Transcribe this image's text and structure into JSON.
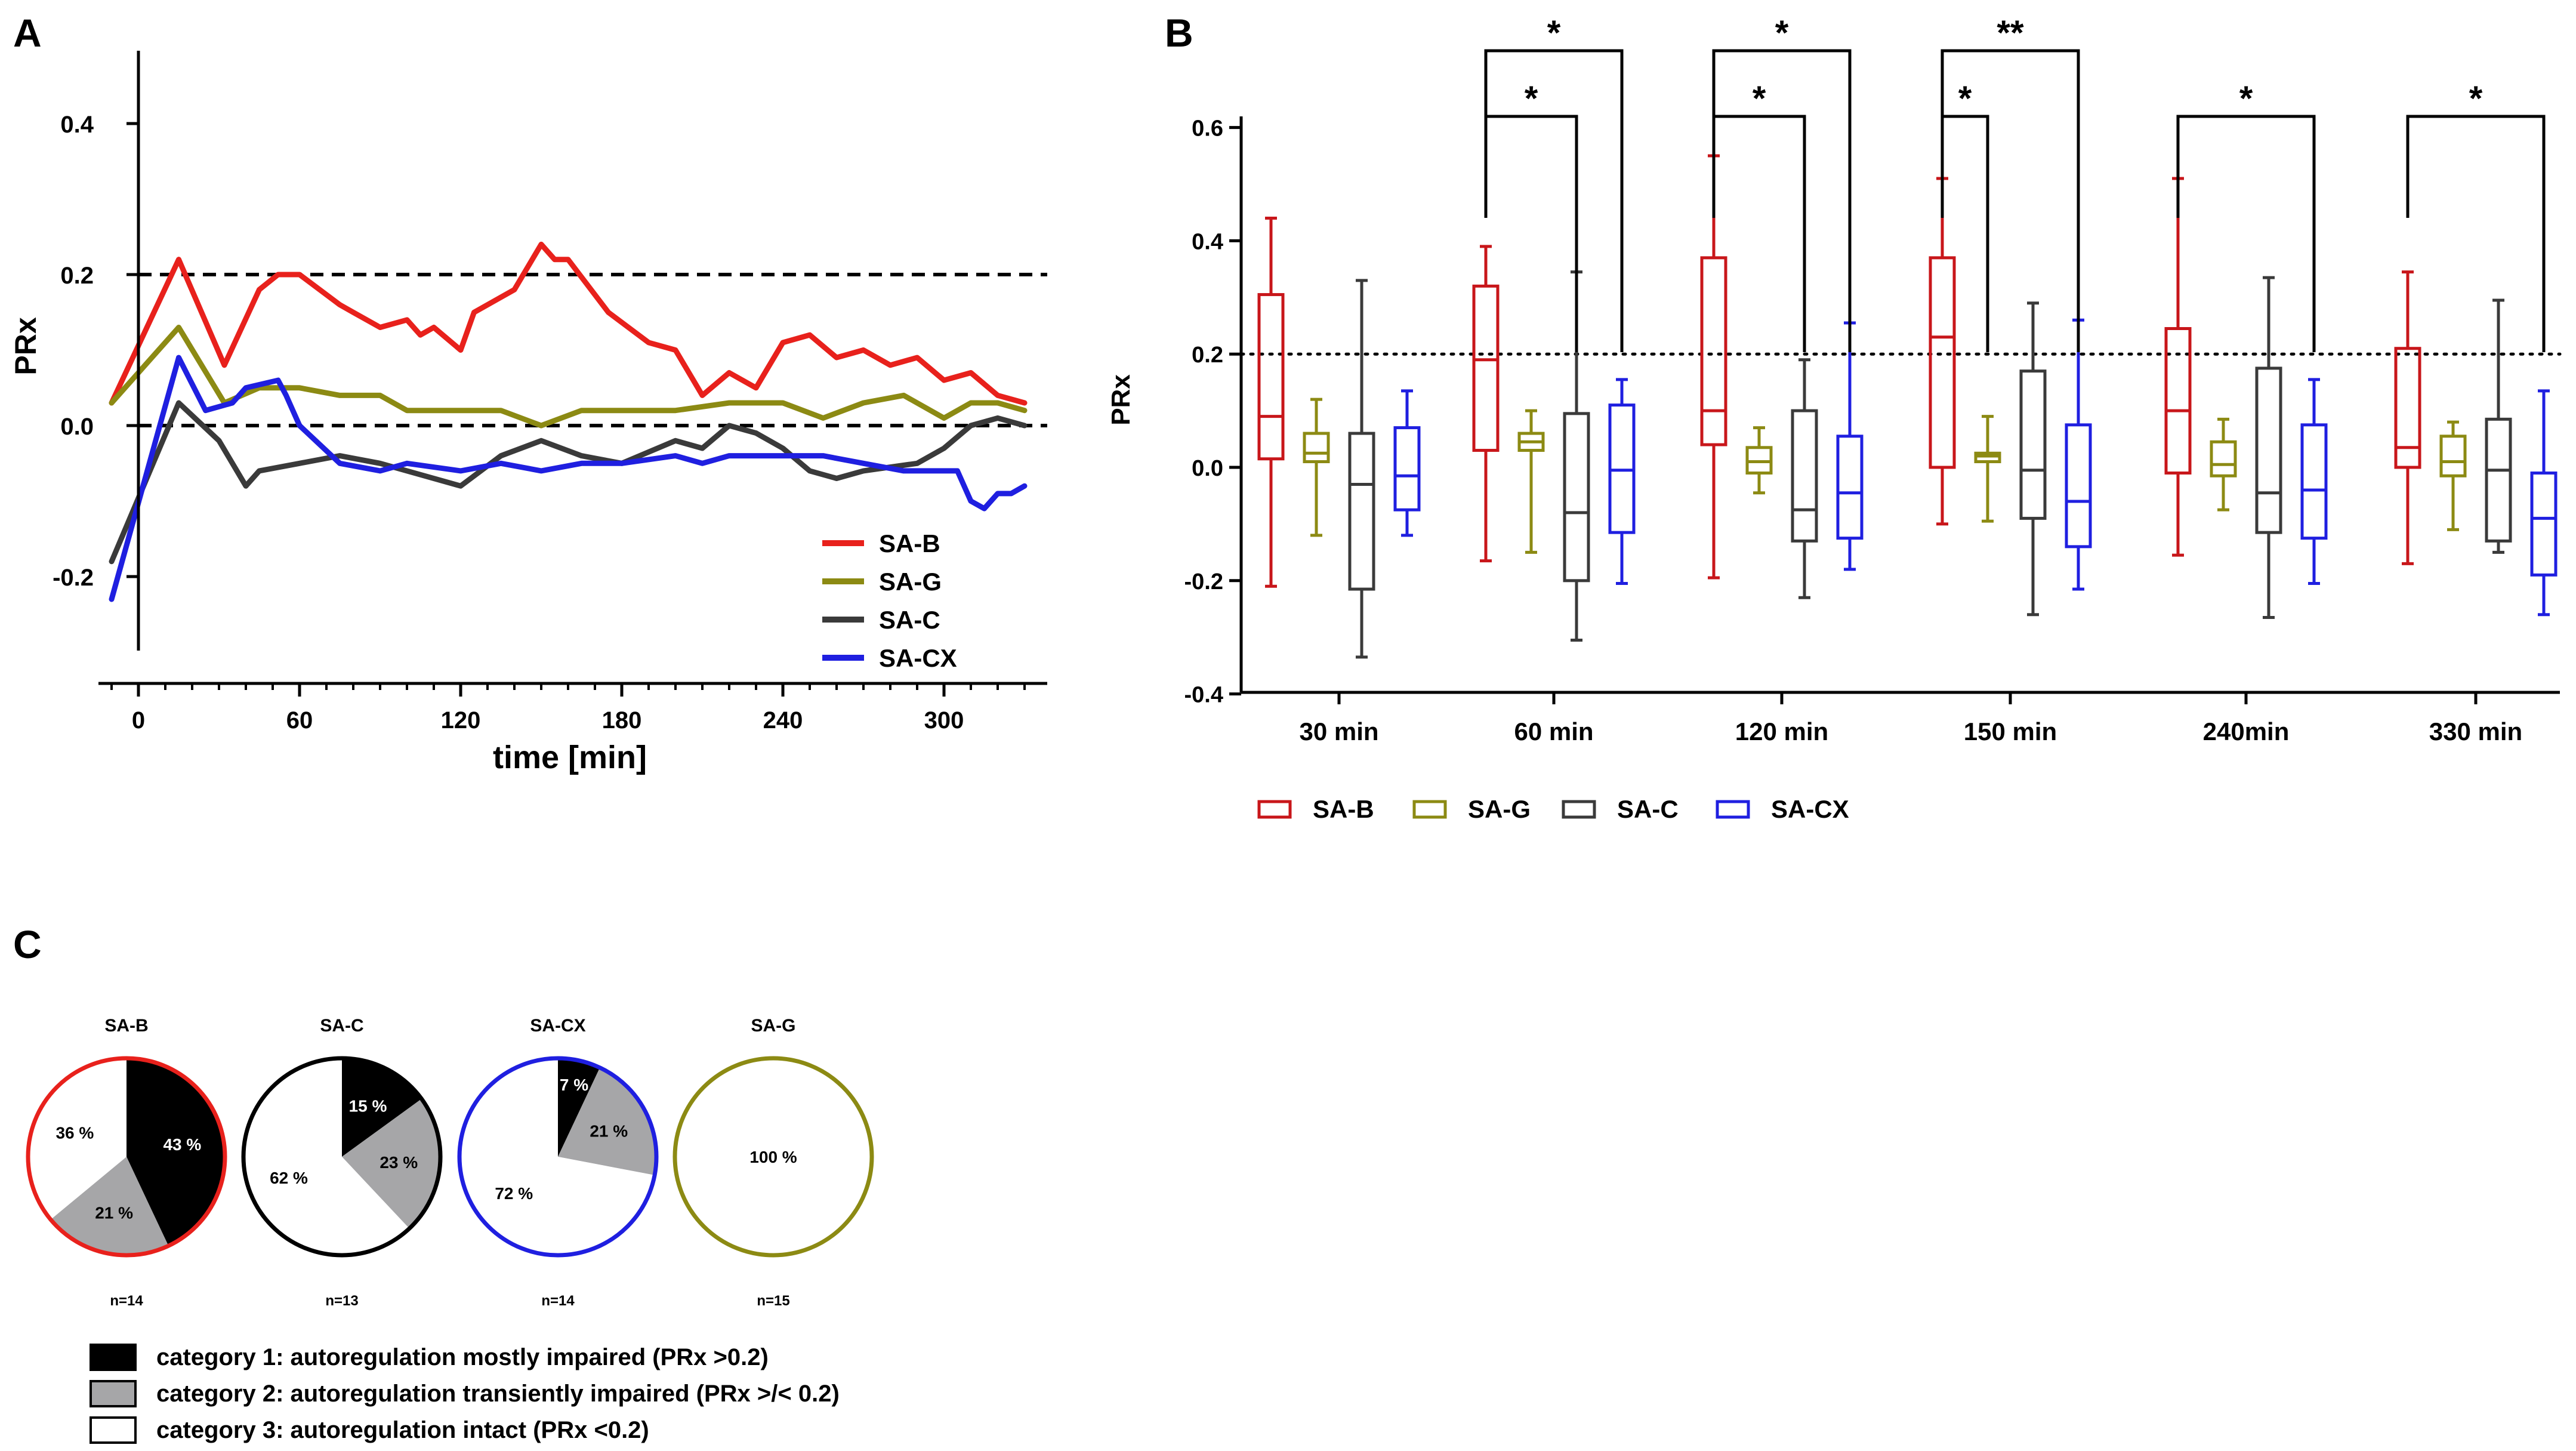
{
  "colors": {
    "SA-B": "#e8211c",
    "SA-G": "#8c8a13",
    "SA-C": "#3a3a3a",
    "SA-CX": "#1f1fe0",
    "SA-B_box": "#c8161a",
    "gray": "#a6a6a8",
    "black": "#000000"
  },
  "chart_data": [
    {
      "panel": "A",
      "type": "line",
      "xlabel": "time [min]",
      "ylabel": "PRx",
      "xlim": [
        -10,
        335
      ],
      "ylim": [
        -0.3,
        0.5
      ],
      "x_ticks": [
        0,
        60,
        120,
        180,
        240,
        300
      ],
      "y_ticks": [
        -0.2,
        0.0,
        0.2,
        0.4
      ],
      "y_tick_labels": [
        "-0.2",
        "0.0",
        "0.2",
        "0.4"
      ],
      "reference_lines": [
        0.2,
        0.0
      ],
      "legend": [
        "SA-B",
        "SA-G",
        "SA-C",
        "SA-CX"
      ],
      "series": [
        {
          "name": "SA-B",
          "x": [
            -10,
            15,
            32,
            45,
            52,
            60,
            75,
            80,
            90,
            100,
            105,
            110,
            120,
            125,
            140,
            150,
            155,
            160,
            175,
            190,
            200,
            210,
            220,
            230,
            240,
            250,
            260,
            270,
            280,
            290,
            300,
            310,
            320,
            330
          ],
          "values": [
            0.03,
            0.22,
            0.08,
            0.18,
            0.2,
            0.2,
            0.16,
            0.15,
            0.13,
            0.14,
            0.12,
            0.13,
            0.1,
            0.15,
            0.18,
            0.24,
            0.22,
            0.22,
            0.15,
            0.11,
            0.1,
            0.04,
            0.07,
            0.05,
            0.11,
            0.12,
            0.09,
            0.1,
            0.08,
            0.09,
            0.06,
            0.07,
            0.04,
            0.03
          ]
        },
        {
          "name": "SA-G",
          "x": [
            -10,
            15,
            32,
            45,
            60,
            75,
            90,
            100,
            120,
            135,
            150,
            165,
            180,
            200,
            220,
            240,
            255,
            270,
            285,
            300,
            310,
            320,
            330
          ],
          "values": [
            0.03,
            0.13,
            0.03,
            0.05,
            0.05,
            0.04,
            0.04,
            0.02,
            0.02,
            0.02,
            0.0,
            0.02,
            0.02,
            0.02,
            0.03,
            0.03,
            0.01,
            0.03,
            0.04,
            0.01,
            0.03,
            0.03,
            0.02
          ]
        },
        {
          "name": "SA-C",
          "x": [
            -10,
            15,
            30,
            40,
            45,
            60,
            75,
            90,
            100,
            120,
            135,
            150,
            165,
            180,
            200,
            210,
            220,
            230,
            240,
            250,
            260,
            270,
            290,
            300,
            310,
            320,
            330
          ],
          "values": [
            -0.18,
            0.03,
            -0.02,
            -0.08,
            -0.06,
            -0.05,
            -0.04,
            -0.05,
            -0.06,
            -0.08,
            -0.04,
            -0.02,
            -0.04,
            -0.05,
            -0.02,
            -0.03,
            0.0,
            -0.01,
            -0.03,
            -0.06,
            -0.07,
            -0.06,
            -0.05,
            -0.03,
            0.0,
            0.01,
            0.0
          ]
        },
        {
          "name": "SA-CX",
          "x": [
            -10,
            15,
            25,
            35,
            40,
            52,
            55,
            60,
            75,
            90,
            100,
            120,
            135,
            150,
            165,
            180,
            200,
            210,
            220,
            240,
            255,
            270,
            285,
            300,
            305,
            310,
            315,
            320,
            325,
            330
          ],
          "values": [
            -0.23,
            0.09,
            0.02,
            0.03,
            0.05,
            0.06,
            0.04,
            0.0,
            -0.05,
            -0.06,
            -0.05,
            -0.06,
            -0.05,
            -0.06,
            -0.05,
            -0.05,
            -0.04,
            -0.05,
            -0.04,
            -0.04,
            -0.04,
            -0.05,
            -0.06,
            -0.06,
            -0.06,
            -0.1,
            -0.11,
            -0.09,
            -0.09,
            -0.08
          ]
        }
      ]
    },
    {
      "panel": "B",
      "type": "box",
      "ylabel": "PRx",
      "ylim": [
        -0.4,
        0.62
      ],
      "y_ticks": [
        -0.4,
        -0.2,
        0.0,
        0.2,
        0.4,
        0.6
      ],
      "y_tick_labels": [
        "-0.4",
        "-0.2",
        "0.0",
        "0.2",
        "0.4",
        "0.6"
      ],
      "reference_line": 0.2,
      "groups": [
        "30 min",
        "60 min",
        "120 min",
        "150 min",
        "240min",
        "330 min"
      ],
      "legend": [
        "SA-B",
        "SA-G",
        "SA-C",
        "SA-CX"
      ],
      "series": [
        {
          "name": "SA-B",
          "boxes": [
            {
              "min": -0.21,
              "q1": 0.015,
              "median": 0.09,
              "q3": 0.305,
              "max": 0.44
            },
            {
              "min": -0.165,
              "q1": 0.03,
              "median": 0.19,
              "q3": 0.32,
              "max": 0.39
            },
            {
              "min": -0.195,
              "q1": 0.04,
              "median": 0.1,
              "q3": 0.37,
              "max": 0.55
            },
            {
              "min": -0.1,
              "q1": 0.0,
              "median": 0.23,
              "q3": 0.37,
              "max": 0.51
            },
            {
              "min": -0.155,
              "q1": -0.01,
              "median": 0.1,
              "q3": 0.245,
              "max": 0.51
            },
            {
              "min": -0.17,
              "q1": 0.0,
              "median": 0.035,
              "q3": 0.21,
              "max": 0.345
            }
          ]
        },
        {
          "name": "SA-G",
          "boxes": [
            {
              "min": -0.12,
              "q1": 0.01,
              "median": 0.025,
              "q3": 0.06,
              "max": 0.12
            },
            {
              "min": -0.15,
              "q1": 0.03,
              "median": 0.045,
              "q3": 0.06,
              "max": 0.1
            },
            {
              "min": -0.045,
              "q1": -0.01,
              "median": 0.01,
              "q3": 0.035,
              "max": 0.07
            },
            {
              "min": -0.095,
              "q1": 0.01,
              "median": 0.02,
              "q3": 0.025,
              "max": 0.09
            },
            {
              "min": -0.075,
              "q1": -0.015,
              "median": 0.005,
              "q3": 0.045,
              "max": 0.085
            },
            {
              "min": -0.11,
              "q1": -0.015,
              "median": 0.01,
              "q3": 0.055,
              "max": 0.08
            }
          ]
        },
        {
          "name": "SA-C",
          "boxes": [
            {
              "min": -0.335,
              "q1": -0.215,
              "median": -0.03,
              "q3": 0.06,
              "max": 0.33
            },
            {
              "min": -0.305,
              "q1": -0.2,
              "median": -0.08,
              "q3": 0.095,
              "max": 0.345
            },
            {
              "min": -0.23,
              "q1": -0.13,
              "median": -0.075,
              "q3": 0.1,
              "max": 0.19
            },
            {
              "min": -0.26,
              "q1": -0.09,
              "median": -0.005,
              "q3": 0.17,
              "max": 0.29
            },
            {
              "min": -0.265,
              "q1": -0.115,
              "median": -0.045,
              "q3": 0.175,
              "max": 0.335
            },
            {
              "min": -0.15,
              "q1": -0.13,
              "median": -0.005,
              "q3": 0.085,
              "max": 0.295
            }
          ]
        },
        {
          "name": "SA-CX",
          "boxes": [
            {
              "min": -0.12,
              "q1": -0.075,
              "median": -0.015,
              "q3": 0.07,
              "max": 0.135
            },
            {
              "min": -0.205,
              "q1": -0.115,
              "median": -0.005,
              "q3": 0.11,
              "max": 0.155
            },
            {
              "min": -0.18,
              "q1": -0.125,
              "median": -0.045,
              "q3": 0.055,
              "max": 0.255
            },
            {
              "min": -0.215,
              "q1": -0.14,
              "median": -0.06,
              "q3": 0.075,
              "max": 0.26
            },
            {
              "min": -0.205,
              "q1": -0.125,
              "median": -0.04,
              "q3": 0.075,
              "max": 0.155
            },
            {
              "min": -0.26,
              "q1": -0.19,
              "median": -0.09,
              "q3": -0.01,
              "max": 0.135
            }
          ]
        }
      ],
      "significance": [
        {
          "group": "60 min",
          "from": "SA-B",
          "to": "SA-C",
          "label": "*"
        },
        {
          "group": "60 min",
          "from": "SA-B",
          "to": "SA-CX",
          "label": "*"
        },
        {
          "group": "120 min",
          "from": "SA-B",
          "to": "SA-C",
          "label": "*"
        },
        {
          "group": "120 min",
          "from": "SA-B",
          "to": "SA-CX",
          "label": "*"
        },
        {
          "group": "150 min",
          "from": "SA-B",
          "to": "SA-G",
          "label": "*"
        },
        {
          "group": "150 min",
          "from": "SA-B",
          "to": "SA-CX",
          "label": "**"
        },
        {
          "group": "240min",
          "from": "SA-B",
          "to": "SA-CX",
          "label": "*"
        },
        {
          "group": "330 min",
          "from": "SA-B",
          "to": "SA-CX",
          "label": "*"
        }
      ]
    },
    {
      "panel": "C",
      "type": "pie",
      "pies": [
        {
          "title": "SA-B",
          "n": "n=14",
          "slices": [
            {
              "category": 1,
              "value": 43,
              "label": "43 %"
            },
            {
              "category": 2,
              "value": 21,
              "label": "21 %"
            },
            {
              "category": 3,
              "value": 36,
              "label": "36 %"
            }
          ]
        },
        {
          "title": "SA-C",
          "n": "n=13",
          "slices": [
            {
              "category": 1,
              "value": 15,
              "label": "15 %"
            },
            {
              "category": 2,
              "value": 23,
              "label": "23 %"
            },
            {
              "category": 3,
              "value": 62,
              "label": "62 %"
            }
          ]
        },
        {
          "title": "SA-CX",
          "n": "n=14",
          "slices": [
            {
              "category": 1,
              "value": 7,
              "label": "7 %"
            },
            {
              "category": 2,
              "value": 21,
              "label": "21 %"
            },
            {
              "category": 3,
              "value": 72,
              "label": "72 %"
            }
          ]
        },
        {
          "title": "SA-G",
          "n": "n=15",
          "slices": [
            {
              "category": 3,
              "value": 100,
              "label": "100 %"
            }
          ]
        }
      ],
      "legend": [
        "category 1: autoregulation mostly impaired (PRx >0.2)",
        "category 2: autoregulation transiently impaired (PRx >/< 0.2)",
        "category 3: autoregulation intact (PRx <0.2)"
      ]
    }
  ],
  "panel_labels": {
    "A": "A",
    "B": "B",
    "C": "C"
  }
}
